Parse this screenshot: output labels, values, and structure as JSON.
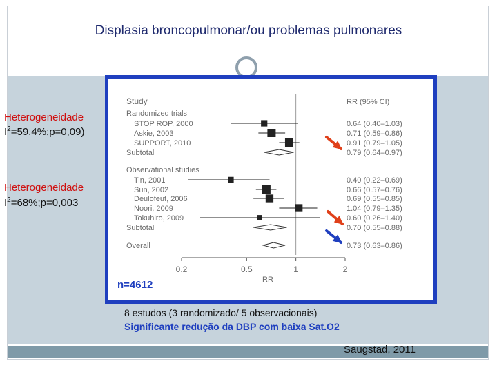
{
  "slide": {
    "title": "Displasia broncopulmonar/ou problemas pulmonares",
    "n_label": "n=4612",
    "note_studies": "8 estudos (3 randomizado/ 5 observacionais)",
    "note_conclusion": "Significante redução da DBP com baixa Sat.O2",
    "citation": "Saugstad, 2011",
    "heterogeneity": [
      {
        "label": "Heterogeneidade",
        "stat_prefix": "I",
        "stat_sup": "2",
        "stat_rest": "=59,4%;p=0,09)"
      },
      {
        "label": "Heterogeneidade",
        "stat_prefix": "I",
        "stat_sup": "2",
        "stat_rest": "=68%;p=0,003"
      }
    ],
    "colors": {
      "title": "#1f2a6e",
      "frame": "#1f3fbf",
      "accent_red": "#d01010",
      "band": "#c6d3dc",
      "arrow_red": "#e0401a",
      "arrow_blue": "#1f3fbf"
    }
  },
  "chart_data": {
    "type": "forest",
    "header_study": "Study",
    "header_rr": "RR (95% CI)",
    "xlabel": "RR",
    "x_ticks": [
      "0.2",
      "0.5",
      "1",
      "2"
    ],
    "x_scale": "log",
    "xlim": [
      0.2,
      2
    ],
    "reference_line": 1,
    "rows": [
      {
        "label": "Randomized trials",
        "kind": "group"
      },
      {
        "label": "STOP ROP, 2000",
        "kind": "study",
        "rr": 0.64,
        "lo": 0.4,
        "hi": 1.03,
        "weight": 0.6,
        "ci_text": "0.64 (0.40–1.03)"
      },
      {
        "label": "Askie, 2003",
        "kind": "study",
        "rr": 0.71,
        "lo": 0.59,
        "hi": 0.86,
        "weight": 1.0,
        "ci_text": "0.71 (0.59–0.86)"
      },
      {
        "label": "SUPPORT, 2010",
        "kind": "study",
        "rr": 0.91,
        "lo": 0.79,
        "hi": 1.05,
        "weight": 1.0,
        "ci_text": "0.91 (0.79–1.05)"
      },
      {
        "label": "Subtotal",
        "kind": "subtotal",
        "rr": 0.79,
        "lo": 0.64,
        "hi": 0.97,
        "ci_text": "0.79 (0.64–0.97)"
      },
      {
        "label": "Observational studies",
        "kind": "group"
      },
      {
        "label": "Tin, 2001",
        "kind": "study",
        "rr": 0.4,
        "lo": 0.22,
        "hi": 0.69,
        "weight": 0.5,
        "ci_text": "0.40 (0.22–0.69)"
      },
      {
        "label": "Sun, 2002",
        "kind": "study",
        "rr": 0.66,
        "lo": 0.57,
        "hi": 0.76,
        "weight": 1.0,
        "ci_text": "0.66 (0.57–0.76)"
      },
      {
        "label": "Deulofeut, 2006",
        "kind": "study",
        "rr": 0.69,
        "lo": 0.55,
        "hi": 0.85,
        "weight": 0.9,
        "ci_text": "0.69 (0.55–0.85)"
      },
      {
        "label": "Noori, 2009",
        "kind": "study",
        "rr": 1.04,
        "lo": 0.79,
        "hi": 1.35,
        "weight": 0.9,
        "ci_text": "1.04 (0.79–1.35)"
      },
      {
        "label": "Tokuhiro, 2009",
        "kind": "study",
        "rr": 0.6,
        "lo": 0.26,
        "hi": 1.4,
        "weight": 0.4,
        "ci_text": "0.60 (0.26–1.40)"
      },
      {
        "label": "Subtotal",
        "kind": "subtotal",
        "rr": 0.7,
        "lo": 0.55,
        "hi": 0.88,
        "ci_text": "0.70 (0.55–0.88)"
      },
      {
        "label": "Overall",
        "kind": "overall",
        "rr": 0.73,
        "lo": 0.63,
        "hi": 0.86,
        "ci_text": "0.73 (0.63–0.86)"
      }
    ]
  }
}
